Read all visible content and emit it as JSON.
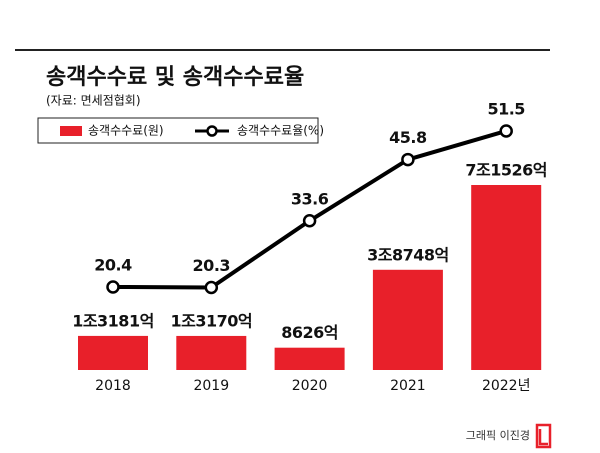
{
  "chart_data": {
    "type": "combo",
    "title": "송객수수료 및 송객수수료율",
    "subtitle": "(자료: 면세점협회)",
    "credit": "그래픽 이진경",
    "categories": [
      "2018",
      "2019",
      "2020",
      "2021",
      "2022년"
    ],
    "series": [
      {
        "name": "송객수수료(원)",
        "type": "bar",
        "color": "#e8202a",
        "values": [
          13181,
          13170,
          8626,
          38748,
          71526
        ],
        "value_labels": [
          "1조3181억",
          "1조3170억",
          "8626억",
          "3조8748억",
          "7조1526억"
        ]
      },
      {
        "name": "송객수수료율(%)",
        "type": "line",
        "color": "#000000",
        "values": [
          20.4,
          20.3,
          33.6,
          45.8,
          51.5
        ]
      }
    ]
  }
}
